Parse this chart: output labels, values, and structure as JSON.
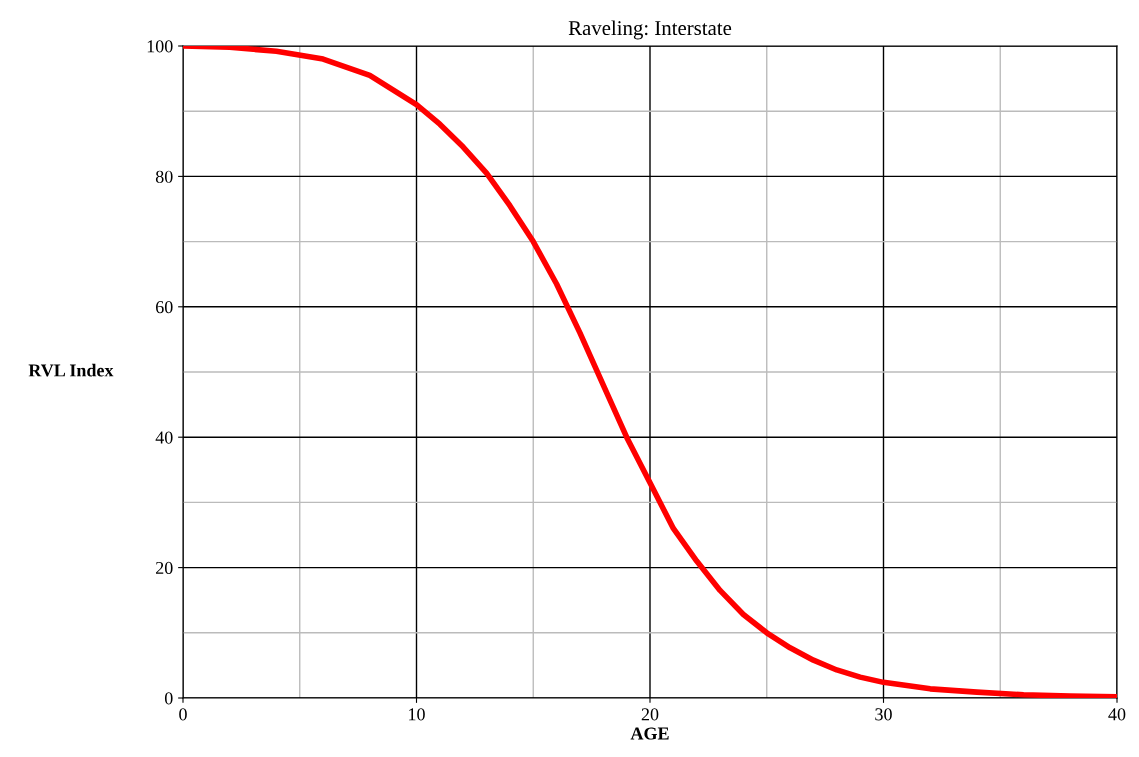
{
  "chart_data": {
    "type": "line",
    "title": "Raveling: Interstate",
    "xlabel": "AGE",
    "ylabel": "RVL Index",
    "x": [
      0,
      2,
      4,
      6,
      8,
      10,
      11,
      12,
      13,
      14,
      15,
      16,
      17,
      18,
      19,
      20,
      21,
      22,
      23,
      24,
      25,
      26,
      27,
      28,
      29,
      30,
      32,
      34,
      36,
      38,
      40
    ],
    "series": [
      {
        "color": "#ff0000",
        "values": [
          100,
          99.8,
          99.2,
          98,
          95.5,
          91,
          88,
          84.5,
          80.5,
          75.5,
          70,
          63.5,
          56,
          48,
          40,
          33,
          26,
          21,
          16.5,
          12.8,
          10,
          7.7,
          5.8,
          4.3,
          3.2,
          2.4,
          1.4,
          0.9,
          0.5,
          0.3,
          0.2
        ]
      }
    ],
    "xlim": [
      0,
      40
    ],
    "xticks": [
      0,
      10,
      20,
      30,
      40
    ],
    "ylim": [
      0,
      100
    ],
    "yticks": [
      0,
      20,
      40,
      60,
      80,
      100
    ],
    "grid": true,
    "marker": "none",
    "line_style": "solid"
  }
}
